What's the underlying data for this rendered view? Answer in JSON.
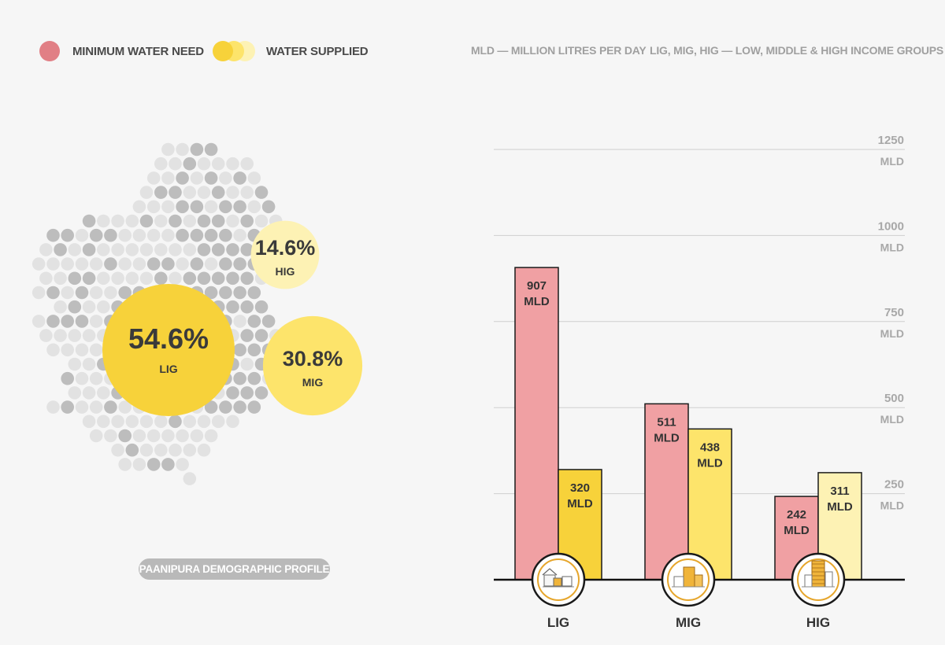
{
  "legend": {
    "min_label": "MINIMUM WATER NEED",
    "supplied_label": "WATER SUPPLIED",
    "note_mld": "MLD — MILLION LITRES PER DAY",
    "note_groups": "LIG, MIG, HIG  — LOW, MIDDLE & HIGH INCOME GROUPS"
  },
  "colors": {
    "minimum_need": "#f0a0a3",
    "minimum_need_legend": "#e17f85",
    "supplied_lig": "#f7d23a",
    "supplied_mig": "#fde46b",
    "supplied_hig": "#fdf2b4",
    "grid": "#cfcfcf",
    "dot_light": "#e2e2e2",
    "dot_dark": "#bdbdbd"
  },
  "profile": {
    "label": "PAANIPURA DEMOGRAPHIC PROFILE",
    "groups": [
      {
        "name": "LIG",
        "percent_label": "54.6%",
        "value": 54.6,
        "color": "#f7d23a"
      },
      {
        "name": "MIG",
        "percent_label": "30.8%",
        "value": 30.8,
        "color": "#fde46b"
      },
      {
        "name": "HIG",
        "percent_label": "14.6%",
        "value": 14.6,
        "color": "#fdf2b4"
      }
    ]
  },
  "chart_data": {
    "type": "bar",
    "categories": [
      "LIG",
      "MIG",
      "HIG"
    ],
    "series": [
      {
        "name": "MINIMUM WATER NEED",
        "values": [
          907,
          511,
          242
        ],
        "labels": [
          "907",
          "511",
          "242"
        ]
      },
      {
        "name": "WATER SUPPLIED",
        "values": [
          320,
          438,
          311
        ],
        "labels": [
          "320",
          "438",
          "311"
        ]
      }
    ],
    "unit": "MLD",
    "yticks": [
      250,
      500,
      750,
      1000,
      1250
    ],
    "ylim": [
      0,
      1250
    ],
    "grid": true,
    "category_icons": [
      "slum-houses-icon",
      "low-rise-houses-icon",
      "high-rise-tower-icon"
    ]
  }
}
